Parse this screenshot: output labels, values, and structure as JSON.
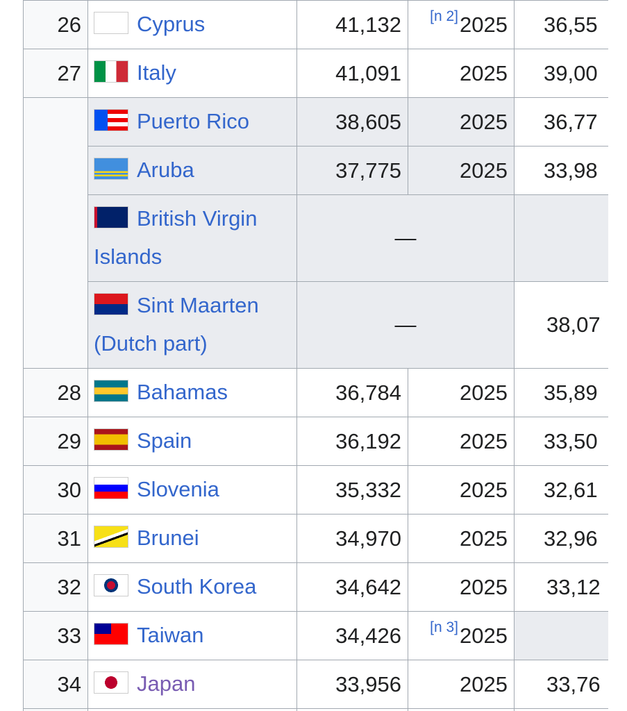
{
  "table": {
    "rows": [
      {
        "rank": 26,
        "country": "Cyprus",
        "value": "41,132",
        "note": "[n 2]",
        "year": 2025,
        "last": "36,55"
      },
      {
        "rank": 27,
        "country": "Italy",
        "value": "41,091",
        "year": 2025,
        "last": "39,00"
      },
      {
        "country": "Puerto Rico",
        "value": "38,605",
        "year": 2025,
        "last": "36,77"
      },
      {
        "country": "Aruba",
        "value": "37,775",
        "year": 2025,
        "last": "33,98"
      },
      {
        "country": "British Virgin Islands",
        "value": "—"
      },
      {
        "country": "Sint Maarten (Dutch part)",
        "value": "—",
        "last": "38,07"
      },
      {
        "rank": 28,
        "country": "Bahamas",
        "value": "36,784",
        "year": 2025,
        "last": "35,89"
      },
      {
        "rank": 29,
        "country": "Spain",
        "value": "36,192",
        "year": 2025,
        "last": "33,50"
      },
      {
        "rank": 30,
        "country": "Slovenia",
        "value": "35,332",
        "year": 2025,
        "last": "32,61"
      },
      {
        "rank": 31,
        "country": "Brunei",
        "value": "34,970",
        "year": 2025,
        "last": "32,96"
      },
      {
        "rank": 32,
        "country": "South Korea",
        "value": "34,642",
        "year": 2025,
        "last": "33,12"
      },
      {
        "rank": 33,
        "country": "Taiwan",
        "value": "34,426",
        "note": "[n 3]",
        "year": 2025
      },
      {
        "rank": 34,
        "country": "Japan",
        "value": "33,956",
        "year": 2025,
        "last": "33,76"
      }
    ]
  }
}
